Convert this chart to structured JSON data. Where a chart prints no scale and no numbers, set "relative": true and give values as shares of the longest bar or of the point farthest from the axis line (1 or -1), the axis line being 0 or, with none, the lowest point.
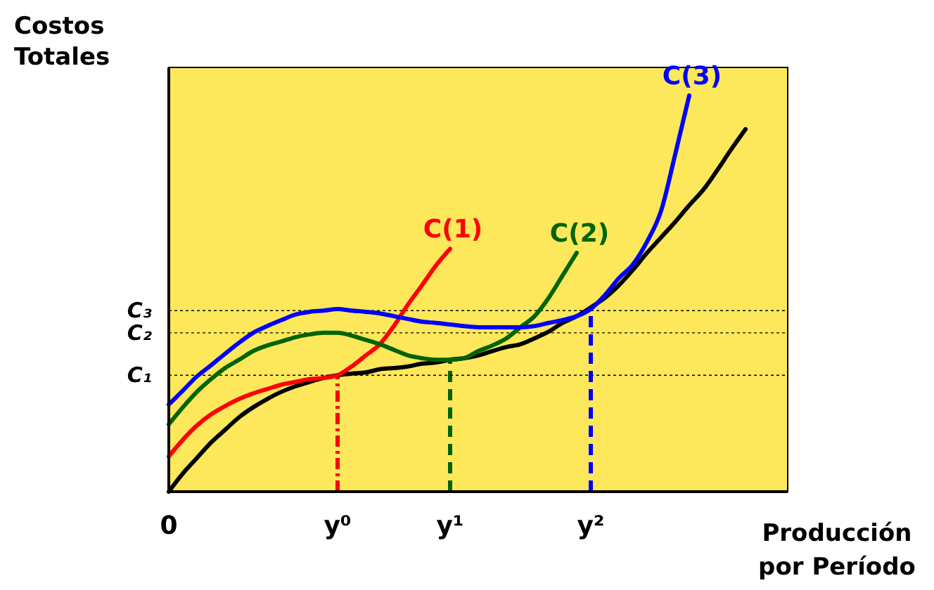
{
  "chart_data": {
    "type": "line",
    "xlabel": "Producción por Período",
    "ylabel": "Costos Totales",
    "relative": true,
    "categories": [
      "0",
      null,
      null,
      null,
      null,
      null,
      null,
      null,
      null,
      null,
      null,
      null,
      "y⁰",
      null,
      null,
      null,
      null,
      null,
      null,
      null,
      "y¹",
      null,
      null,
      null,
      null,
      null,
      null,
      null,
      null,
      null,
      "y²",
      null,
      null,
      null,
      null,
      null,
      null,
      null,
      null,
      null,
      null,
      null
    ],
    "marker": "none",
    "line_style": "solid",
    "series": [
      {
        "color": "#000000",
        "values": [
          0,
          0.046,
          0.085,
          0.124,
          0.156,
          0.188,
          0.213,
          0.234,
          0.252,
          0.266,
          0.277,
          0.287,
          0.294,
          0.298,
          0.301,
          0.309,
          0.312,
          0.316,
          0.323,
          0.326,
          0.333,
          0.337,
          0.344,
          0.355,
          0.365,
          0.372,
          0.387,
          0.404,
          0.426,
          0.443,
          0.465,
          0.489,
          0.521,
          0.56,
          0.603,
          0.642,
          0.681,
          0.723,
          0.762,
          0.812,
          0.865,
          0.915
        ]
      },
      {
        "name": "C(1)",
        "color": "#ff0000",
        "values": [
          0.089,
          0.131,
          0.167,
          0.195,
          0.216,
          0.234,
          0.248,
          0.259,
          0.27,
          0.277,
          0.284,
          0.287,
          0.294,
          0.316,
          0.344,
          0.372,
          0.418,
          0.472,
          0.521,
          0.571,
          0.613,
          null,
          null,
          null,
          null,
          null,
          null,
          null,
          null,
          null,
          null,
          null,
          null,
          null,
          null,
          null,
          null,
          null,
          null,
          null,
          null,
          null
        ]
      },
      {
        "name": "C(2)",
        "color": "#006400",
        "values": [
          0.17,
          0.213,
          0.252,
          0.284,
          0.312,
          0.333,
          0.355,
          0.369,
          0.379,
          0.39,
          0.397,
          0.401,
          0.401,
          0.394,
          0.383,
          0.372,
          0.358,
          0.344,
          0.337,
          0.333,
          0.333,
          0.337,
          0.355,
          0.369,
          0.387,
          0.415,
          0.443,
          0.489,
          0.546,
          0.603,
          null,
          null,
          null,
          null,
          null,
          null,
          null,
          null,
          null,
          null,
          null,
          null
        ]
      },
      {
        "name": "C(3)",
        "color": "#0000ff",
        "values": [
          0.22,
          0.255,
          0.291,
          0.319,
          0.348,
          0.376,
          0.401,
          0.418,
          0.433,
          0.447,
          0.454,
          0.457,
          0.461,
          0.457,
          0.454,
          0.45,
          0.443,
          0.436,
          0.429,
          0.426,
          0.422,
          0.418,
          0.415,
          0.415,
          0.415,
          0.415,
          0.418,
          0.426,
          0.433,
          0.443,
          0.461,
          0.496,
          0.539,
          0.574,
          0.631,
          0.709,
          0.851,
          1,
          null,
          null,
          null,
          null
        ]
      }
    ],
    "ref_lines": [
      {
        "axis": "x",
        "value": "y⁰",
        "color": "#ff0000",
        "line_style": "dashdot"
      },
      {
        "axis": "x",
        "value": "y¹",
        "color": "#006400",
        "line_style": "dashed"
      },
      {
        "axis": "x",
        "value": "y²",
        "color": "#0000ff",
        "line_style": "dashed"
      },
      {
        "axis": "y",
        "value": 0.294,
        "label": "C₁",
        "color": "#000000",
        "line_style": "dotted"
      },
      {
        "axis": "y",
        "value": 0.401,
        "label": "C₂",
        "color": "#000000",
        "line_style": "dotted"
      },
      {
        "axis": "y",
        "value": 0.457,
        "label": "C₃",
        "color": "#000000",
        "line_style": "dotted"
      }
    ]
  }
}
